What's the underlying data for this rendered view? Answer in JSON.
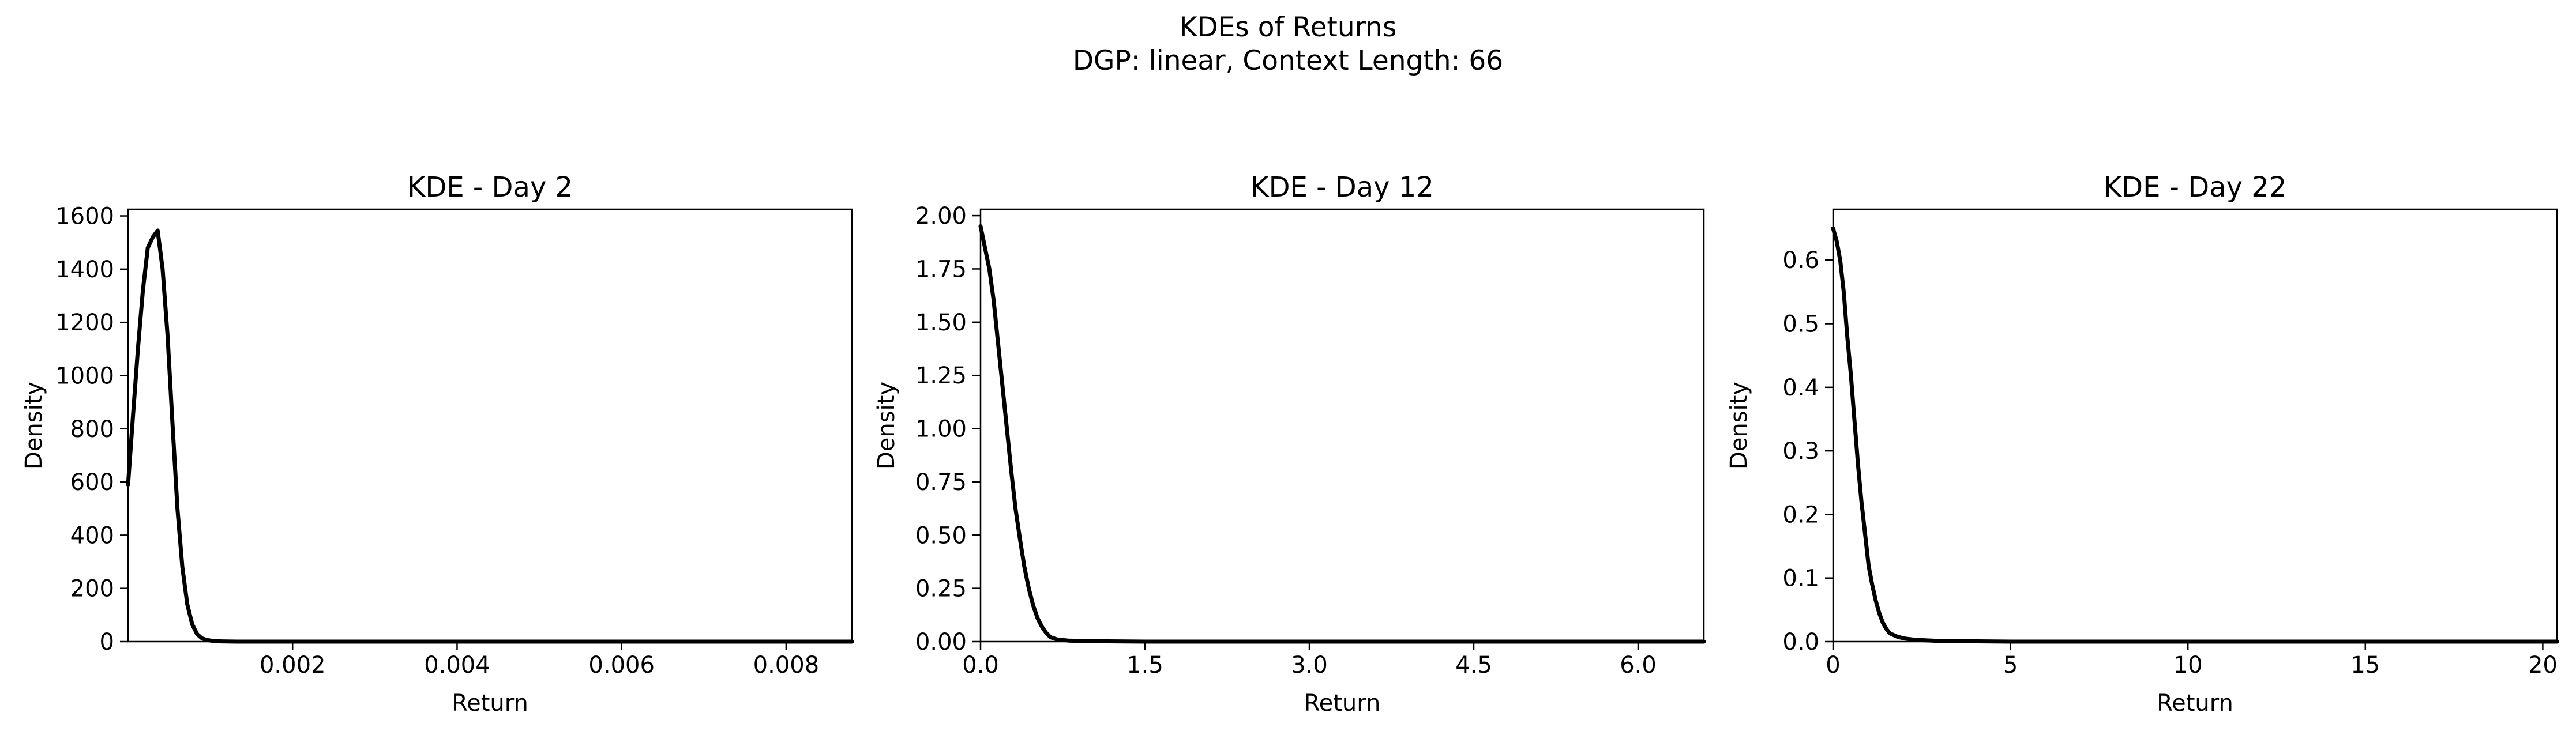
{
  "figure": {
    "title_line1": "KDEs of Returns",
    "title_line2": "DGP: linear, Context Length: 66"
  },
  "chart_data": [
    {
      "type": "line",
      "title": "KDE - Day 2",
      "xlabel": "Return",
      "ylabel": "Density",
      "xlim": [
        0,
        0.0088
      ],
      "ylim": [
        0,
        1625
      ],
      "xticks": [
        0.002,
        0.004,
        0.006,
        0.008
      ],
      "xtick_labels": [
        "0.002",
        "0.004",
        "0.006",
        "0.008"
      ],
      "yticks": [
        0,
        200,
        400,
        600,
        800,
        1000,
        1200,
        1400,
        1600
      ],
      "ytick_labels": [
        "0",
        "200",
        "400",
        "600",
        "800",
        "1000",
        "1200",
        "1400",
        "1600"
      ],
      "grid": false,
      "line_color": "#000000",
      "x": [
        0,
        6e-05,
        0.00012,
        0.00018,
        0.00024,
        0.0003,
        0.00036,
        0.00042,
        0.00048,
        0.00054,
        0.0006,
        0.00066,
        0.00072,
        0.00078,
        0.00084,
        0.0009,
        0.00096,
        0.00102,
        0.00108,
        0.00114,
        0.0012,
        0.00126,
        0.00132,
        0.0014,
        0.0015,
        0.0017,
        0.002,
        0.0025,
        0.003,
        0.004,
        0.005,
        0.006,
        0.007,
        0.008,
        0.0088
      ],
      "y": [
        590,
        850,
        1100,
        1320,
        1480,
        1520,
        1545,
        1400,
        1150,
        820,
        500,
        280,
        140,
        65,
        28,
        12,
        6,
        3,
        1.5,
        0.8,
        0.4,
        0.2,
        0.1,
        0.05,
        0,
        0,
        0,
        0,
        0,
        0,
        0,
        0,
        0,
        0,
        0
      ]
    },
    {
      "type": "line",
      "title": "KDE - Day 12",
      "xlabel": "Return",
      "ylabel": "Density",
      "xlim": [
        0,
        6.6
      ],
      "ylim": [
        0,
        2.03
      ],
      "xticks": [
        0,
        1.5,
        3.0,
        4.5,
        6.0
      ],
      "xtick_labels": [
        "0.0",
        "1.5",
        "3.0",
        "4.5",
        "6.0"
      ],
      "yticks": [
        0,
        0.25,
        0.5,
        0.75,
        1.0,
        1.25,
        1.5,
        1.75,
        2.0
      ],
      "ytick_labels": [
        "0.00",
        "0.25",
        "0.50",
        "0.75",
        "1.00",
        "1.25",
        "1.50",
        "1.75",
        "2.00"
      ],
      "grid": false,
      "line_color": "#000000",
      "x": [
        0,
        0.04,
        0.08,
        0.12,
        0.16,
        0.2,
        0.24,
        0.28,
        0.32,
        0.36,
        0.4,
        0.44,
        0.48,
        0.52,
        0.56,
        0.6,
        0.64,
        0.7,
        0.8,
        1.0,
        1.5,
        2.0,
        3.0,
        4.0,
        5.0,
        6.0,
        6.6
      ],
      "y": [
        1.95,
        1.85,
        1.75,
        1.6,
        1.4,
        1.2,
        1.0,
        0.8,
        0.62,
        0.48,
        0.35,
        0.25,
        0.17,
        0.11,
        0.07,
        0.04,
        0.02,
        0.01,
        0.005,
        0.002,
        0,
        0,
        0,
        0,
        0,
        0,
        0
      ]
    },
    {
      "type": "line",
      "title": "KDE - Day 22",
      "xlabel": "Return",
      "ylabel": "Density",
      "xlim": [
        0,
        20.4
      ],
      "ylim": [
        0,
        0.68
      ],
      "xticks": [
        0,
        5,
        10,
        15,
        20
      ],
      "xtick_labels": [
        "0",
        "5",
        "10",
        "15",
        "20"
      ],
      "yticks": [
        0,
        0.1,
        0.2,
        0.3,
        0.4,
        0.5,
        0.6
      ],
      "ytick_labels": [
        "0.0",
        "0.1",
        "0.2",
        "0.3",
        "0.4",
        "0.5",
        "0.6"
      ],
      "grid": false,
      "line_color": "#000000",
      "x": [
        0,
        0.1,
        0.2,
        0.3,
        0.4,
        0.5,
        0.6,
        0.7,
        0.8,
        0.9,
        1.0,
        1.1,
        1.2,
        1.3,
        1.4,
        1.5,
        1.6,
        1.8,
        2.0,
        2.3,
        2.6,
        3.0,
        4.0,
        5.0,
        7.0,
        10.0,
        15.0,
        20.4
      ],
      "y": [
        0.65,
        0.63,
        0.6,
        0.55,
        0.48,
        0.42,
        0.35,
        0.28,
        0.22,
        0.17,
        0.12,
        0.09,
        0.065,
        0.045,
        0.03,
        0.02,
        0.013,
        0.008,
        0.005,
        0.003,
        0.002,
        0.001,
        0.0005,
        0,
        0,
        0,
        0,
        0
      ]
    }
  ]
}
